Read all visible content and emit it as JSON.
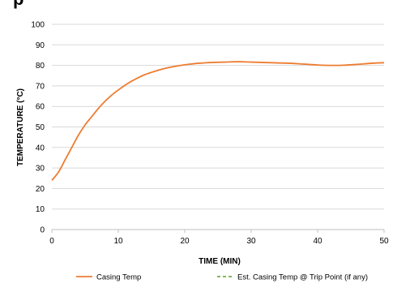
{
  "cut_title_fragment": "p",
  "chart_data": {
    "type": "line",
    "xlabel": "TIME (MIN)",
    "ylabel": "TEMPERATURE (°C)",
    "xlim": [
      0,
      50
    ],
    "ylim": [
      0,
      100
    ],
    "xticks": [
      0,
      10,
      20,
      30,
      40,
      50
    ],
    "yticks": [
      0,
      10,
      20,
      30,
      40,
      50,
      60,
      70,
      80,
      90,
      100
    ],
    "grid": "horizontal",
    "legend_position": "bottom",
    "series": [
      {
        "name": "Casing Temp",
        "color": "#ED7D31",
        "dash": "solid",
        "x": [
          0,
          1,
          2,
          3,
          4,
          5,
          6,
          7,
          8,
          9,
          10,
          11,
          12,
          13,
          14,
          15,
          16,
          17,
          18,
          19,
          20,
          22,
          24,
          26,
          28,
          30,
          32,
          34,
          36,
          38,
          40,
          42,
          44,
          46,
          48,
          50
        ],
        "y": [
          24,
          28,
          34,
          40,
          46,
          51,
          55,
          59,
          62.5,
          65.5,
          68,
          70.3,
          72.3,
          74,
          75.5,
          76.6,
          77.6,
          78.5,
          79.2,
          79.8,
          80.3,
          81,
          81.4,
          81.6,
          81.8,
          81.6,
          81.4,
          81.2,
          81,
          80.6,
          80.2,
          80,
          80.1,
          80.5,
          81,
          81.3
        ]
      },
      {
        "name": "Est. Casing Temp @ Trip Point (if any)",
        "color": "#70AD47",
        "dash": "dashed",
        "x": [],
        "y": []
      }
    ]
  }
}
